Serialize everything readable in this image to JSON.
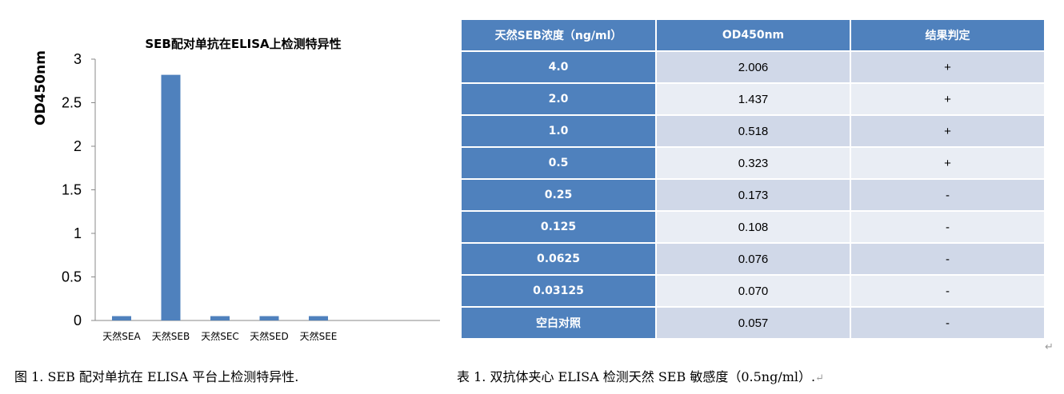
{
  "chart_data": {
    "type": "bar",
    "title": "SEB配对单抗在ELISA上检测特异性",
    "xlabel": "",
    "ylabel": "OD450nm",
    "categories": [
      "天然SEA",
      "天然SEB",
      "天然SEC",
      "天然SED",
      "天然SEE"
    ],
    "values": [
      0.05,
      2.82,
      0.05,
      0.05,
      0.05
    ],
    "yticks": [
      "0",
      "0.5",
      "1",
      "1.5",
      "2",
      "2.5",
      "3"
    ],
    "ylim": [
      0,
      3
    ],
    "grid": false,
    "bar_color": "#4f81bd"
  },
  "table": {
    "headers": [
      "天然SEB浓度（ng/ml）",
      "OD450nm",
      "结果判定"
    ],
    "rows": [
      [
        "4.0",
        "2.006",
        "+"
      ],
      [
        "2.0",
        "1.437",
        "+"
      ],
      [
        "1.0",
        "0.518",
        "+"
      ],
      [
        "0.5",
        "0.323",
        "+"
      ],
      [
        "0.25",
        "0.173",
        "-"
      ],
      [
        "0.125",
        "0.108",
        "-"
      ],
      [
        "0.0625",
        "0.076",
        "-"
      ],
      [
        "0.03125",
        "0.070",
        "-"
      ],
      [
        "空白对照",
        "0.057",
        "-"
      ]
    ],
    "header_color": "#4f81bd",
    "row_color_odd": "#d0d8e8",
    "row_color_even": "#e9edf4"
  },
  "captions": {
    "figure": "图 1. SEB 配对单抗在 ELISA 平台上检测特异性.",
    "table": "表 1.  双抗体夹心 ELISA 检测天然 SEB 敏感度（0.5ng/ml）.",
    "return_mark": "↵"
  }
}
